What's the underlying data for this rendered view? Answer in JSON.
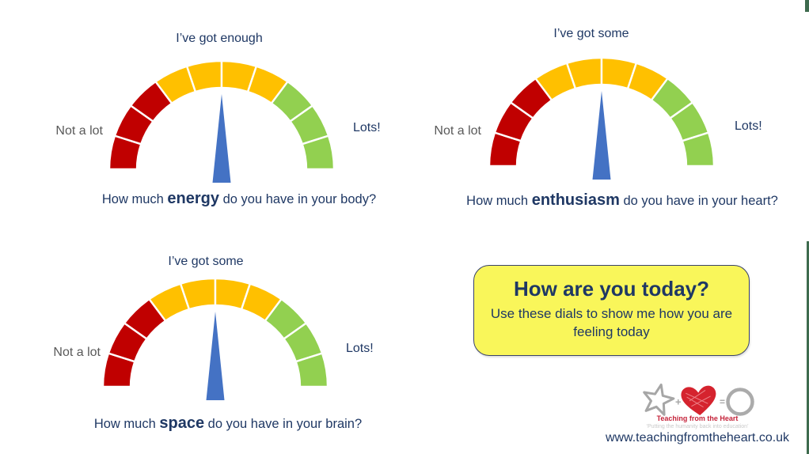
{
  "colors": {
    "navy": "#1F3864",
    "gray_label": "#595959",
    "dial_red": "#C00000",
    "dial_amber": "#FFC000",
    "dial_green": "#92D050",
    "needle_blue": "#4472C4",
    "note_bg": "#F9F65A",
    "note_border": "#39426B",
    "brand_red": "#C5243B",
    "logo_gray": "#A6A6A6",
    "heart_red": "#D5232E",
    "circle_gray": "#ABABAB",
    "tagline_gray": "#C9C9C9",
    "edge_green": "#3E6B4E"
  },
  "dial": {
    "segment_colors": [
      "#C00000",
      "#C00000",
      "#C00000",
      "#FFC000",
      "#FFC000",
      "#FFC000",
      "#FFC000",
      "#92D050",
      "#92D050",
      "#92D050"
    ],
    "segment_stroke": "#FFFFFF",
    "needle_color": "#4472C4"
  },
  "gauges": [
    {
      "title": "I’ve got enough",
      "left_label": "Not a lot",
      "right_label": "Lots!",
      "question_prefix": "How much ",
      "question_keyword": "energy",
      "question_suffix": " do you have in your body?",
      "needle_percent": 50
    },
    {
      "title": "I’ve got some",
      "left_label": "Not a lot",
      "right_label": "Lots!",
      "question_prefix": "How much ",
      "question_keyword": "enthusiasm",
      "question_suffix": " do you have in your heart?",
      "needle_percent": 50
    },
    {
      "title": "I’ve got some",
      "left_label": "Not a lot",
      "right_label": "Lots!",
      "question_prefix": "How much ",
      "question_keyword": "space",
      "question_suffix": " do you have in your brain?",
      "needle_percent": 50
    }
  ],
  "note": {
    "title": "How are you today?",
    "body": "Use these dials to show me how you are feeling today"
  },
  "logo": {
    "plus": "+",
    "equals": "=",
    "brand": "Teaching from the Heart",
    "tagline": "‘Putting the humanity back into education’",
    "website": "www.teachingfromtheheart.co.uk"
  },
  "chart_data": [
    {
      "type": "gauge",
      "title": "I’ve got enough",
      "question": "How much energy do you have in your body?",
      "keyword": "energy",
      "scale_min_label": "Not a lot",
      "scale_max_label": "Lots!",
      "segments": [
        {
          "color": "#C00000",
          "meaning": "low",
          "count": 3
        },
        {
          "color": "#FFC000",
          "meaning": "medium",
          "count": 4
        },
        {
          "color": "#92D050",
          "meaning": "high",
          "count": 3
        }
      ],
      "arc_degrees": 180,
      "needle_position_percent": 50
    },
    {
      "type": "gauge",
      "title": "I’ve got some",
      "question": "How much enthusiasm do you have in your heart?",
      "keyword": "enthusiasm",
      "scale_min_label": "Not a lot",
      "scale_max_label": "Lots!",
      "segments": [
        {
          "color": "#C00000",
          "meaning": "low",
          "count": 3
        },
        {
          "color": "#FFC000",
          "meaning": "medium",
          "count": 4
        },
        {
          "color": "#92D050",
          "meaning": "high",
          "count": 3
        }
      ],
      "arc_degrees": 180,
      "needle_position_percent": 50
    },
    {
      "type": "gauge",
      "title": "I’ve got some",
      "question": "How much space do you have in your brain?",
      "keyword": "space",
      "scale_min_label": "Not a lot",
      "scale_max_label": "Lots!",
      "segments": [
        {
          "color": "#C00000",
          "meaning": "low",
          "count": 3
        },
        {
          "color": "#FFC000",
          "meaning": "medium",
          "count": 4
        },
        {
          "color": "#92D050",
          "meaning": "high",
          "count": 3
        }
      ],
      "arc_degrees": 180,
      "needle_position_percent": 50
    }
  ]
}
